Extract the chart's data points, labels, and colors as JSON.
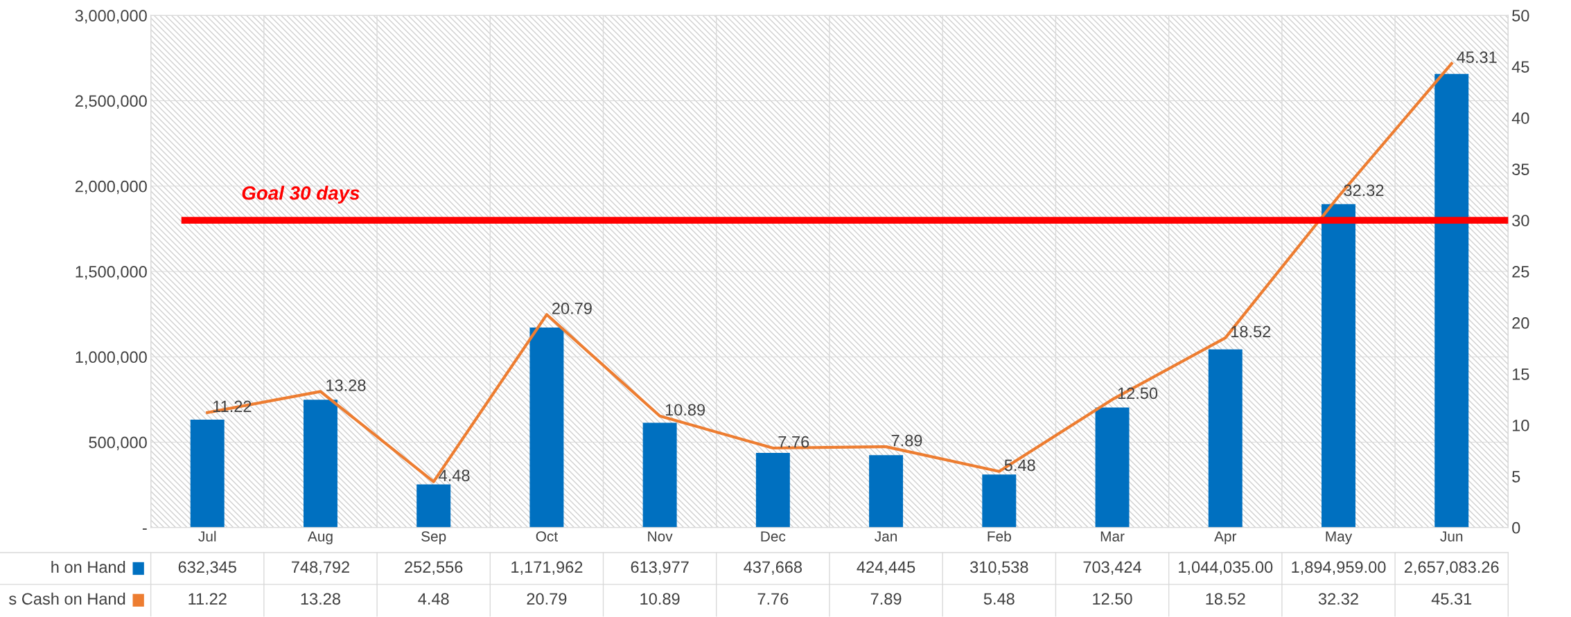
{
  "chart_data": {
    "type": "bar",
    "categories": [
      "Jul",
      "Aug",
      "Sep",
      "Oct",
      "Nov",
      "Dec",
      "Jan",
      "Feb",
      "Mar",
      "Apr",
      "May",
      "Jun"
    ],
    "series": [
      {
        "name": "h on Hand",
        "color": "#0070c0",
        "values": [
          632345,
          748792,
          252556,
          1171962,
          613977,
          437668,
          424445,
          310538,
          703424,
          1044035.0,
          1894959.0,
          2657083.26
        ],
        "value_labels": [
          "632,345",
          "748,792",
          "252,556",
          "1,171,962",
          "613,977",
          "437,668",
          "424,445",
          "310,538",
          "703,424",
          "1,044,035.00",
          "1,894,959.00",
          "2,657,083.26"
        ]
      },
      {
        "name": "s Cash on Hand",
        "type": "line",
        "axis": "y2",
        "color": "#ed7d31",
        "values": [
          11.22,
          13.28,
          4.48,
          20.79,
          10.89,
          7.76,
          7.89,
          5.48,
          12.5,
          18.52,
          32.32,
          45.31
        ],
        "value_labels": [
          "11.22",
          "13.28",
          "4.48",
          "20.79",
          "10.89",
          "7.76",
          "7.89",
          "5.48",
          "12.50",
          "18.52",
          "32.32",
          "45.31"
        ]
      }
    ],
    "ylim": [
      0,
      3000000
    ],
    "yticks": [
      {
        "value": 0,
        "label": "-"
      },
      {
        "value": 500000,
        "label": "500,000"
      },
      {
        "value": 1000000,
        "label": "1,000,000"
      },
      {
        "value": 1500000,
        "label": "1,500,000"
      },
      {
        "value": 2000000,
        "label": "2,000,000"
      },
      {
        "value": 2500000,
        "label": "2,500,000"
      },
      {
        "value": 3000000,
        "label": "3,000,000"
      }
    ],
    "y2lim": [
      0,
      50
    ],
    "y2ticks": [
      0,
      5,
      10,
      15,
      20,
      25,
      30,
      35,
      40,
      45,
      50
    ],
    "ref_lines": [
      {
        "axis": "y2",
        "value": 30,
        "label": "Goal 30 days",
        "color": "#ff0000"
      }
    ],
    "grid": true,
    "data_labels": true,
    "marker": "none",
    "legend": "bottom left"
  }
}
